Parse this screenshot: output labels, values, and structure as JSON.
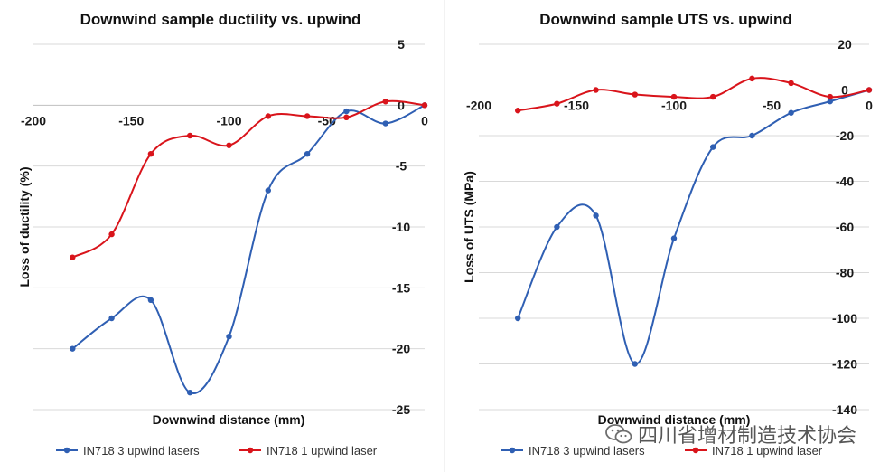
{
  "colors": {
    "series_3_upwind": "#2f5fb3",
    "series_1_upwind": "#d9141b",
    "grid": "#d9d9d9"
  },
  "chart_data": [
    {
      "type": "line",
      "title": "Downwind sample ductility vs. upwind",
      "xlabel": "Downwind distance (mm)",
      "ylabel": "Loss of ductility (%)",
      "xlim": [
        -200,
        0
      ],
      "ylim": [
        -25,
        5
      ],
      "xticks": [
        -200,
        -150,
        -100,
        -50,
        0
      ],
      "yticks": [
        5,
        0,
        -5,
        -10,
        -15,
        -20,
        -25
      ],
      "grid": true,
      "legend_position": "bottom",
      "series": [
        {
          "name": "IN718 3 upwind lasers",
          "color": "#2f5fb3",
          "x": [
            -180,
            -160,
            -140,
            -120,
            -100,
            -80,
            -60,
            -40,
            -20,
            0
          ],
          "y": [
            -20,
            -17.5,
            -16,
            -23.6,
            -19,
            -7,
            -4,
            -0.5,
            -1.5,
            0
          ]
        },
        {
          "name": "IN718 1 upwind laser",
          "color": "#d9141b",
          "x": [
            -180,
            -160,
            -140,
            -120,
            -100,
            -80,
            -60,
            -40,
            -20,
            0
          ],
          "y": [
            -12.5,
            -10.6,
            -4,
            -2.5,
            -3.3,
            -0.9,
            -0.9,
            -1,
            0.3,
            0
          ]
        }
      ]
    },
    {
      "type": "line",
      "title": "Downwind sample UTS vs. upwind",
      "xlabel": "Downwind distance (mm)",
      "ylabel": "Loss of UTS (MPa)",
      "xlim": [
        -200,
        0
      ],
      "ylim": [
        -140,
        20
      ],
      "xticks": [
        -200,
        -150,
        -100,
        -50,
        0
      ],
      "yticks": [
        20,
        0,
        -20,
        -40,
        -60,
        -80,
        -100,
        -120,
        -140
      ],
      "grid": true,
      "legend_position": "bottom",
      "series": [
        {
          "name": "IN718 3 upwind lasers",
          "color": "#2f5fb3",
          "x": [
            -180,
            -160,
            -140,
            -120,
            -100,
            -80,
            -60,
            -40,
            -20,
            0
          ],
          "y": [
            -100,
            -60,
            -55,
            -120,
            -65,
            -25,
            -20,
            -10,
            -5,
            0
          ]
        },
        {
          "name": "IN718 1 upwind laser",
          "color": "#d9141b",
          "x": [
            -180,
            -160,
            -140,
            -120,
            -100,
            -80,
            -60,
            -40,
            -20,
            0
          ],
          "y": [
            -9,
            -6,
            0,
            -2,
            -3,
            -3,
            5,
            3,
            -3,
            0
          ]
        }
      ]
    }
  ],
  "watermark": {
    "text": "四川省增材制造技术协会"
  }
}
